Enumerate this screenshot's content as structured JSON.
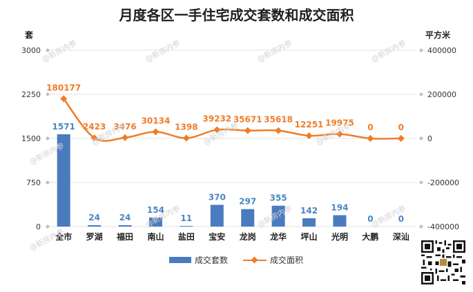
{
  "chart_data": {
    "type": "bar",
    "title": "月度各区一手住宅成交套数和成交面积",
    "ylabel_left": "套",
    "ylabel_right": "平方米",
    "categories": [
      "全市",
      "罗湖",
      "福田",
      "南山",
      "盐田",
      "宝安",
      "龙岗",
      "龙华",
      "坪山",
      "光明",
      "大鹏",
      "深汕"
    ],
    "series": [
      {
        "name": "成交套数",
        "type": "bar",
        "axis": "left",
        "color": "#4a7bbf",
        "values": [
          1571,
          24,
          24,
          154,
          11,
          370,
          297,
          355,
          142,
          194,
          0,
          0
        ]
      },
      {
        "name": "成交面积",
        "type": "line",
        "axis": "right",
        "color": "#ef7c28",
        "values": [
          180177,
          2423,
          3476,
          30134,
          1398,
          39232,
          35671,
          35618,
          12251,
          19975,
          0,
          0
        ]
      }
    ],
    "ylim_left": [
      0,
      3000
    ],
    "yticks_left": [
      "0",
      "750",
      "1500",
      "2250",
      "3000"
    ],
    "ylim_right": [
      -400000,
      400000
    ],
    "yticks_right": [
      "-400000",
      "-200000",
      "0",
      "200000",
      "400000"
    ],
    "grid": true,
    "legend_position": "bottom"
  },
  "watermark_text": "@新房内参",
  "colors": {
    "bar": "#4a7bbf",
    "line": "#ef7c28",
    "grid": "#e3e3e3"
  }
}
